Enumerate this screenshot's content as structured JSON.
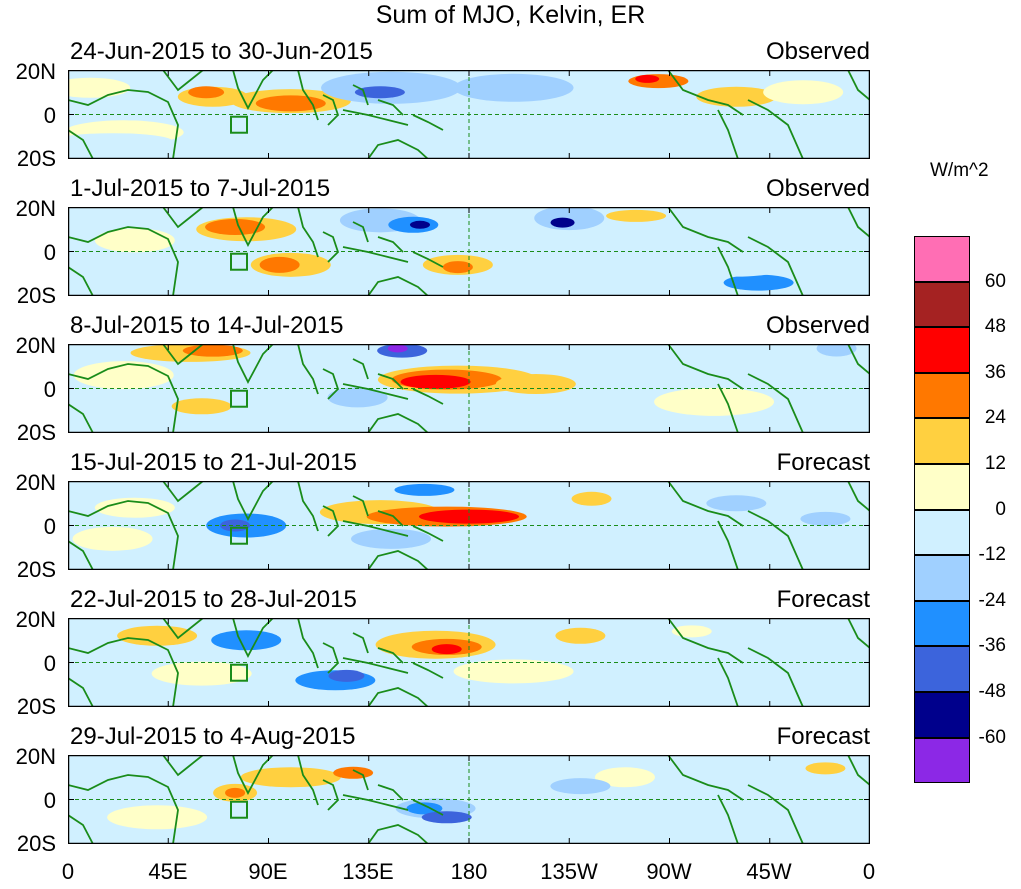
{
  "title": "Sum of MJO, Kelvin, ER",
  "lat_labels": [
    "20N",
    "0",
    "20S"
  ],
  "lon_labels": [
    "0",
    "45E",
    "90E",
    "135E",
    "180",
    "135W",
    "90W",
    "45W",
    "0"
  ],
  "colorbar": {
    "unit": "W/m^2",
    "levels": [
      "60",
      "48",
      "36",
      "24",
      "12",
      "0",
      "-12",
      "-24",
      "-36",
      "-48",
      "-60"
    ],
    "colors": [
      "#ff6eb4",
      "#a52222",
      "#ff0000",
      "#ff7800",
      "#ffd040",
      "#ffffc8",
      "#d0f0ff",
      "#a0d0ff",
      "#2090ff",
      "#3c64dc",
      "#00008c",
      "#8c28e6"
    ]
  },
  "panels": [
    {
      "title": "24-Jun-2015 to 30-Jun-2015",
      "type": "Observed"
    },
    {
      "title": "1-Jul-2015 to 7-Jul-2015",
      "type": "Observed"
    },
    {
      "title": "8-Jul-2015 to 14-Jul-2015",
      "type": "Observed"
    },
    {
      "title": "15-Jul-2015 to 21-Jul-2015",
      "type": "Forecast"
    },
    {
      "title": "22-Jul-2015 to 28-Jul-2015",
      "type": "Forecast"
    },
    {
      "title": "29-Jul-2015 to 4-Aug-2015",
      "type": "Forecast"
    }
  ]
}
